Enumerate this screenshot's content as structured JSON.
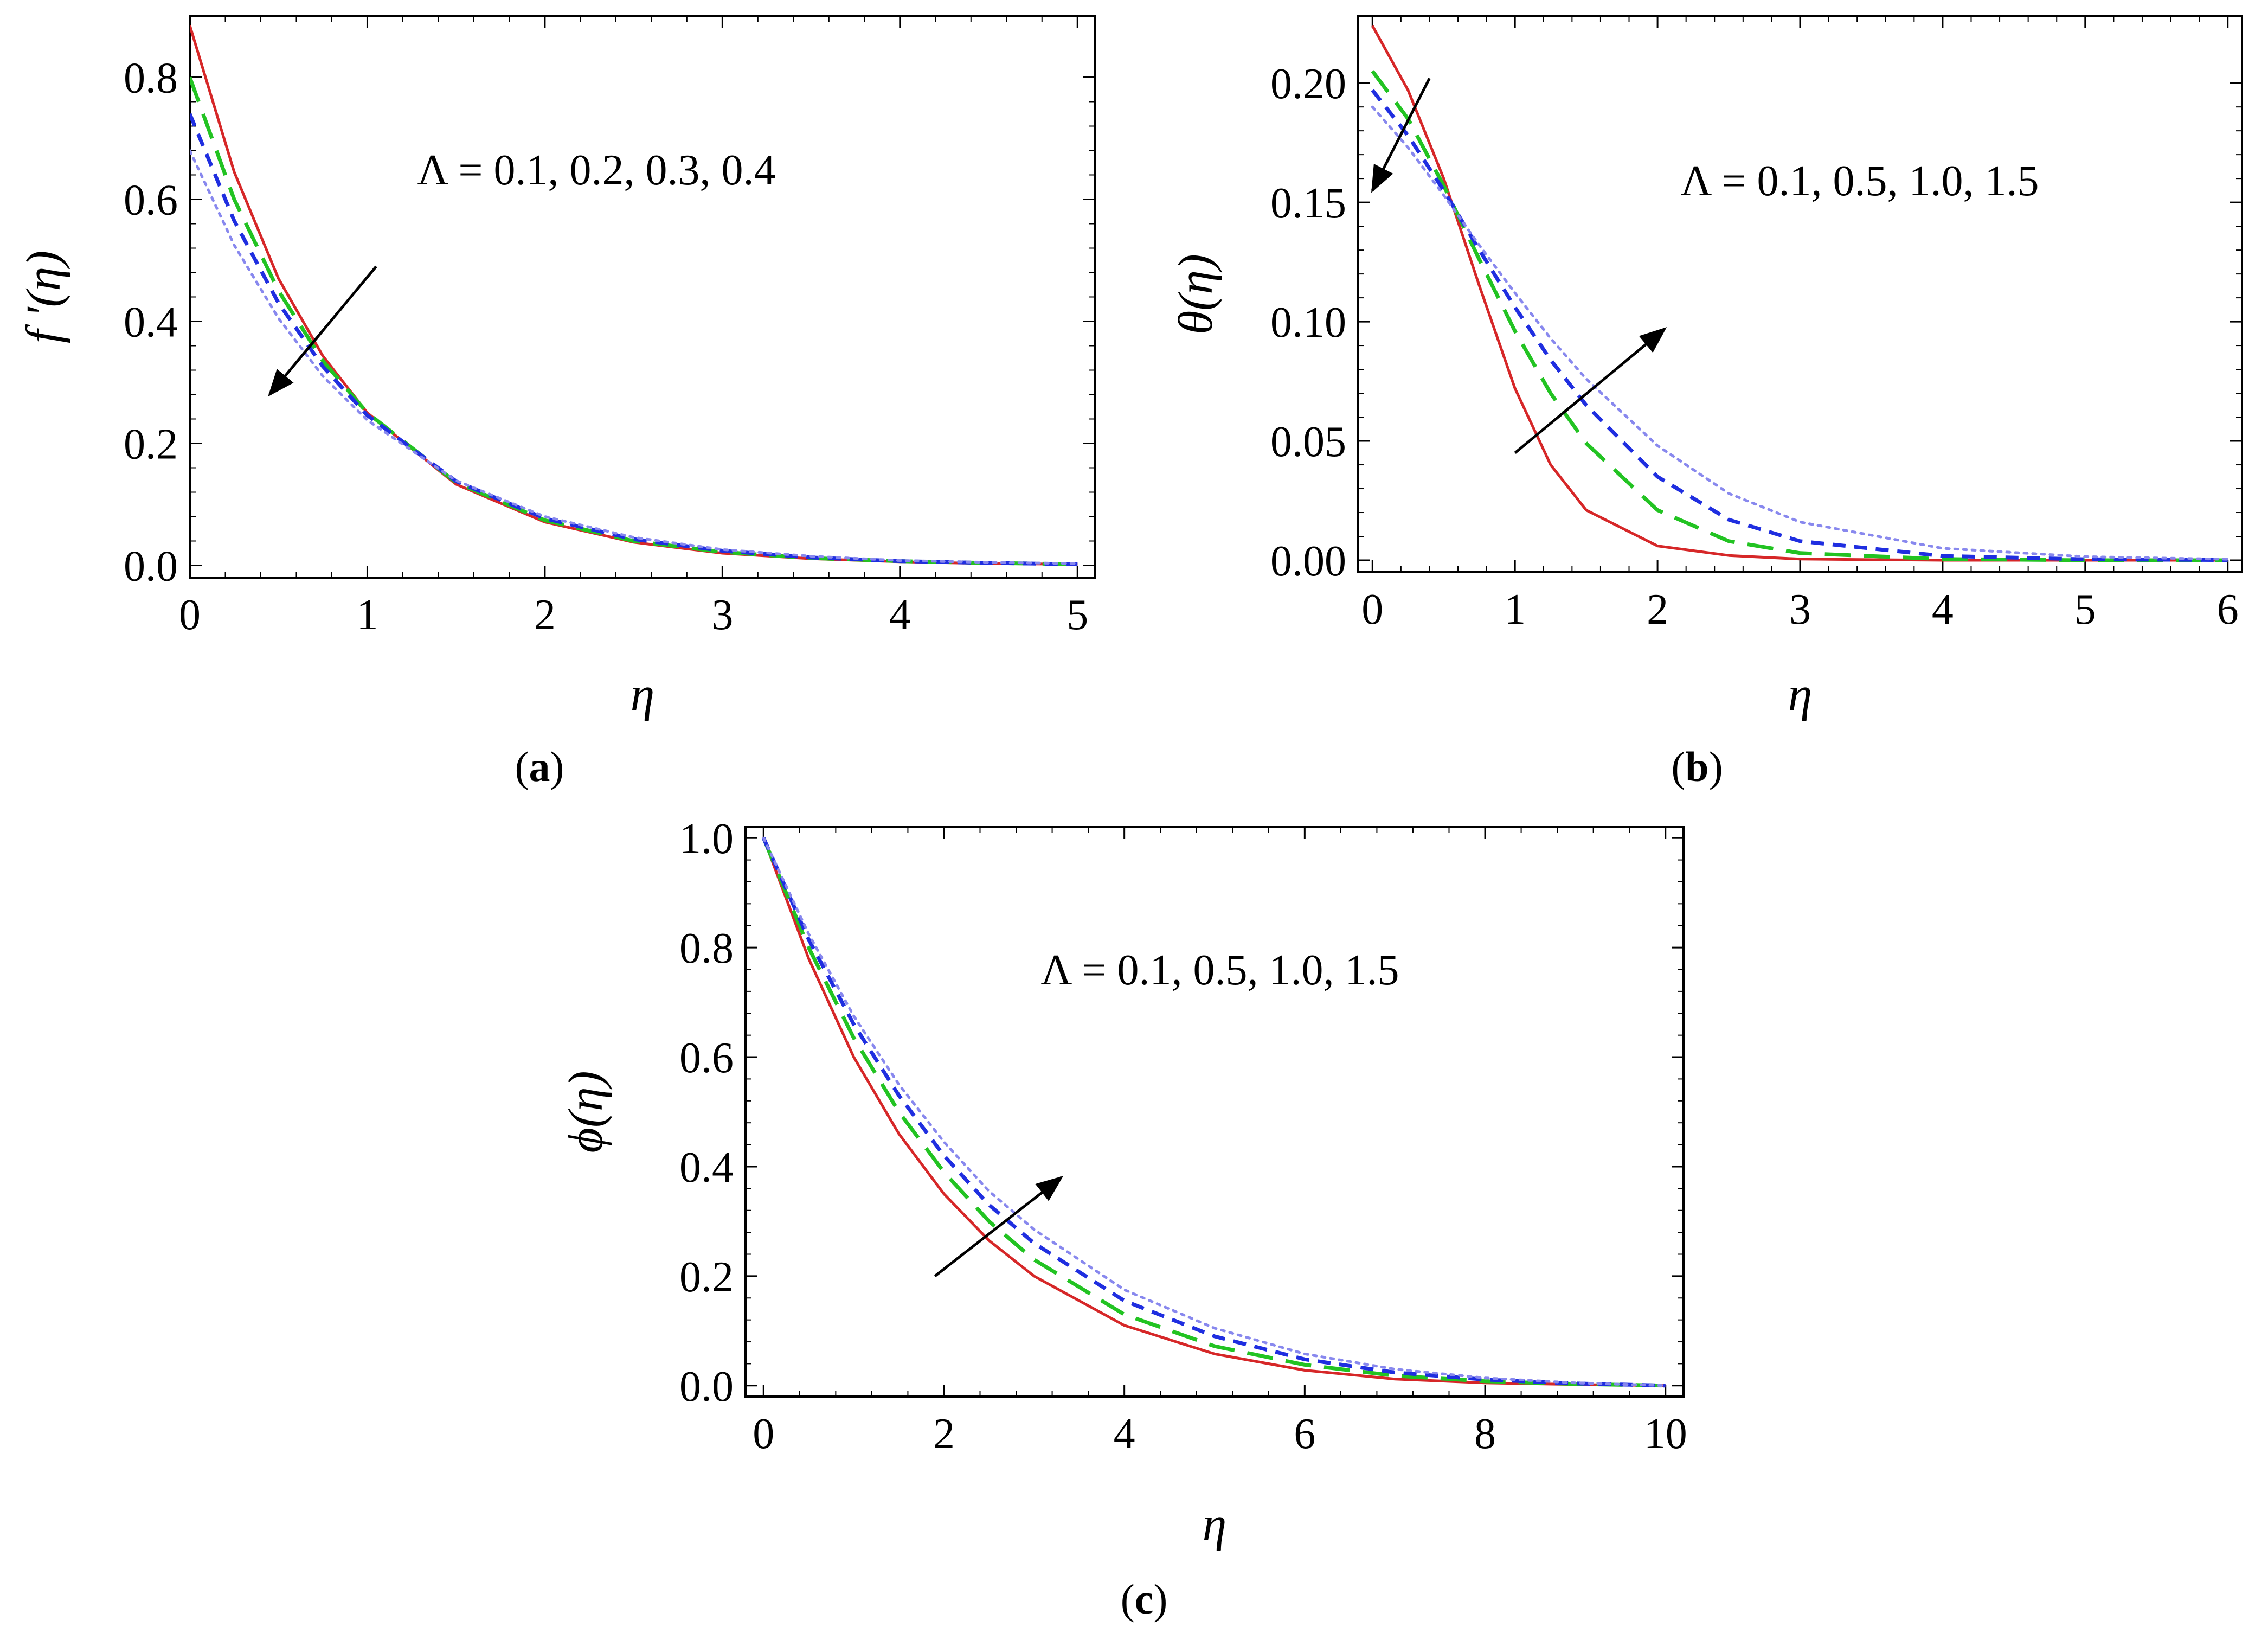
{
  "chart_data": [
    {
      "panel": "a",
      "caption": "a",
      "type": "line",
      "xlabel": "η",
      "ylabel": "f '(η)",
      "xlim": [
        0,
        5.1
      ],
      "ylim": [
        -0.02,
        0.9
      ],
      "xticks": [
        "0",
        "1",
        "2",
        "3",
        "4",
        "5"
      ],
      "yticks": [
        "0.0",
        "0.2",
        "0.4",
        "0.6",
        "0.8"
      ],
      "annotation": "Λ = 0.1, 0.2, 0.3, 0.4",
      "arrow": {
        "from": [
          1.05,
          0.49
        ],
        "to": [
          0.45,
          0.28
        ],
        "trend": "decreasing"
      },
      "series": [
        {
          "style": "solid",
          "color": "#d62728",
          "x": [
            0,
            0.25,
            0.5,
            0.75,
            1,
            1.5,
            2,
            2.5,
            3,
            3.5,
            4,
            4.5,
            5
          ],
          "y": [
            0.885,
            0.645,
            0.47,
            0.343,
            0.25,
            0.133,
            0.071,
            0.038,
            0.02,
            0.011,
            0.006,
            0.003,
            0.002
          ]
        },
        {
          "style": "long-dash",
          "color": "#22c322",
          "x": [
            0,
            0.25,
            0.5,
            0.75,
            1,
            1.5,
            2,
            2.5,
            3,
            3.5,
            4,
            4.5,
            5
          ],
          "y": [
            0.8,
            0.6,
            0.45,
            0.335,
            0.25,
            0.136,
            0.074,
            0.04,
            0.022,
            0.012,
            0.007,
            0.004,
            0.002
          ]
        },
        {
          "style": "dash",
          "color": "#1f2ee0",
          "x": [
            0,
            0.25,
            0.5,
            0.75,
            1,
            1.5,
            2,
            2.5,
            3,
            3.5,
            4,
            4.5,
            5
          ],
          "y": [
            0.74,
            0.565,
            0.43,
            0.326,
            0.246,
            0.138,
            0.077,
            0.043,
            0.024,
            0.013,
            0.007,
            0.004,
            0.002
          ]
        },
        {
          "style": "dot",
          "color": "#8888ee",
          "x": [
            0,
            0.25,
            0.5,
            0.75,
            1,
            1.5,
            2,
            2.5,
            3,
            3.5,
            4,
            4.5,
            5
          ],
          "y": [
            0.68,
            0.525,
            0.405,
            0.31,
            0.238,
            0.139,
            0.08,
            0.046,
            0.026,
            0.015,
            0.008,
            0.005,
            0.003
          ]
        }
      ]
    },
    {
      "panel": "b",
      "caption": "b",
      "type": "line",
      "xlabel": "η",
      "ylabel": "θ(η)",
      "xlim": [
        -0.1,
        6.1
      ],
      "ylim": [
        -0.005,
        0.228
      ],
      "xticks": [
        "0",
        "1",
        "2",
        "3",
        "4",
        "5",
        "6"
      ],
      "yticks": [
        "0.00",
        "0.05",
        "0.10",
        "0.15",
        "0.20"
      ],
      "annotation": "Λ = 0.1, 0.5, 1.0, 1.5",
      "arrows": [
        {
          "from": [
            0.4,
            0.202
          ],
          "to": [
            0.0,
            0.155
          ],
          "trend": "decreasing near wall"
        },
        {
          "from": [
            1.0,
            0.045
          ],
          "to": [
            2.05,
            0.097
          ],
          "trend": "increasing"
        }
      ],
      "series": [
        {
          "style": "solid",
          "color": "#d62728",
          "x": [
            0,
            0.25,
            0.5,
            0.75,
            1,
            1.25,
            1.5,
            2,
            2.5,
            3,
            4,
            5,
            6
          ],
          "y": [
            0.224,
            0.197,
            0.16,
            0.115,
            0.072,
            0.04,
            0.021,
            0.006,
            0.002,
            0.0005,
            0.0,
            0.0,
            0.0
          ]
        },
        {
          "style": "long-dash",
          "color": "#22c322",
          "x": [
            0,
            0.25,
            0.5,
            0.75,
            1,
            1.25,
            1.5,
            2,
            2.5,
            3,
            4,
            5,
            6
          ],
          "y": [
            0.205,
            0.185,
            0.157,
            0.126,
            0.096,
            0.07,
            0.049,
            0.021,
            0.008,
            0.003,
            0.0005,
            0.0,
            0.0
          ]
        },
        {
          "style": "dash",
          "color": "#1f2ee0",
          "x": [
            0,
            0.25,
            0.5,
            0.75,
            1,
            1.25,
            1.5,
            2,
            2.5,
            3,
            4,
            5,
            6
          ],
          "y": [
            0.197,
            0.178,
            0.155,
            0.13,
            0.106,
            0.084,
            0.065,
            0.035,
            0.017,
            0.008,
            0.0018,
            0.0004,
            0.0001
          ]
        },
        {
          "style": "dot",
          "color": "#8888ee",
          "x": [
            0,
            0.25,
            0.5,
            0.75,
            1,
            1.25,
            1.5,
            2,
            2.5,
            3,
            4,
            5,
            6
          ],
          "y": [
            0.19,
            0.173,
            0.153,
            0.132,
            0.112,
            0.093,
            0.076,
            0.048,
            0.028,
            0.016,
            0.005,
            0.0015,
            0.0004
          ]
        }
      ]
    },
    {
      "panel": "c",
      "caption": "c",
      "type": "line",
      "xlabel": "η",
      "ylabel": "ϕ(η)",
      "xlim": [
        -0.2,
        10.2
      ],
      "ylim": [
        -0.02,
        1.02
      ],
      "xticks": [
        "0",
        "2",
        "4",
        "6",
        "8",
        "10"
      ],
      "yticks": [
        "0.0",
        "0.2",
        "0.4",
        "0.6",
        "0.8",
        "1.0"
      ],
      "annotation": "Λ = 0.1, 0.5, 1.0, 1.5",
      "arrow": {
        "from": [
          1.9,
          0.2
        ],
        "to": [
          3.3,
          0.38
        ],
        "trend": "increasing"
      },
      "series": [
        {
          "style": "solid",
          "color": "#d62728",
          "x": [
            0,
            0.5,
            1,
            1.5,
            2,
            2.5,
            3,
            4,
            5,
            6,
            7,
            8,
            9,
            10
          ],
          "y": [
            1.0,
            0.78,
            0.6,
            0.46,
            0.35,
            0.265,
            0.2,
            0.11,
            0.058,
            0.028,
            0.012,
            0.005,
            0.002,
            0.0
          ]
        },
        {
          "style": "long-dash",
          "color": "#22c322",
          "x": [
            0,
            0.5,
            1,
            1.5,
            2,
            2.5,
            3,
            4,
            5,
            6,
            7,
            8,
            9,
            10
          ],
          "y": [
            1.0,
            0.8,
            0.635,
            0.5,
            0.39,
            0.3,
            0.23,
            0.13,
            0.072,
            0.038,
            0.018,
            0.008,
            0.003,
            0.0
          ]
        },
        {
          "style": "dash",
          "color": "#1f2ee0",
          "x": [
            0,
            0.5,
            1,
            1.5,
            2,
            2.5,
            3,
            4,
            5,
            6,
            7,
            8,
            9,
            10
          ],
          "y": [
            1.0,
            0.815,
            0.66,
            0.53,
            0.42,
            0.33,
            0.26,
            0.155,
            0.09,
            0.048,
            0.024,
            0.011,
            0.004,
            0.0
          ]
        },
        {
          "style": "dot",
          "color": "#8888ee",
          "x": [
            0,
            0.5,
            1,
            1.5,
            2,
            2.5,
            3,
            4,
            5,
            6,
            7,
            8,
            9,
            10
          ],
          "y": [
            1.0,
            0.825,
            0.675,
            0.55,
            0.445,
            0.355,
            0.285,
            0.175,
            0.105,
            0.058,
            0.03,
            0.014,
            0.005,
            0.0
          ]
        }
      ]
    }
  ]
}
